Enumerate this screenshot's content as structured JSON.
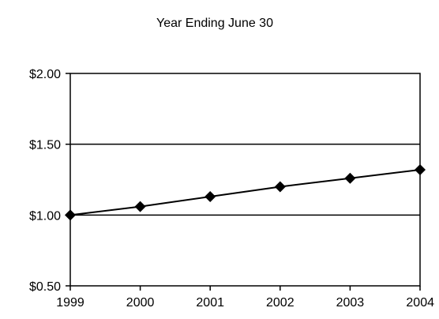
{
  "chart_data": {
    "type": "line",
    "title": "Year Ending June 30",
    "xlabel": "",
    "ylabel": "",
    "categories": [
      "1999",
      "2000",
      "2001",
      "2002",
      "2003",
      "2004"
    ],
    "series": [
      {
        "values": [
          1.0,
          1.06,
          1.13,
          1.2,
          1.26,
          1.32
        ]
      }
    ],
    "ylim": [
      0.5,
      2.0
    ],
    "y_ticks": [
      {
        "value": 0.5,
        "label": "$0.50"
      },
      {
        "value": 1.0,
        "label": "$1.00"
      },
      {
        "value": 1.5,
        "label": "$1.50"
      },
      {
        "value": 2.0,
        "label": "$2.00"
      }
    ],
    "grid": true,
    "marker": "diamond",
    "line_color": "#000000"
  }
}
